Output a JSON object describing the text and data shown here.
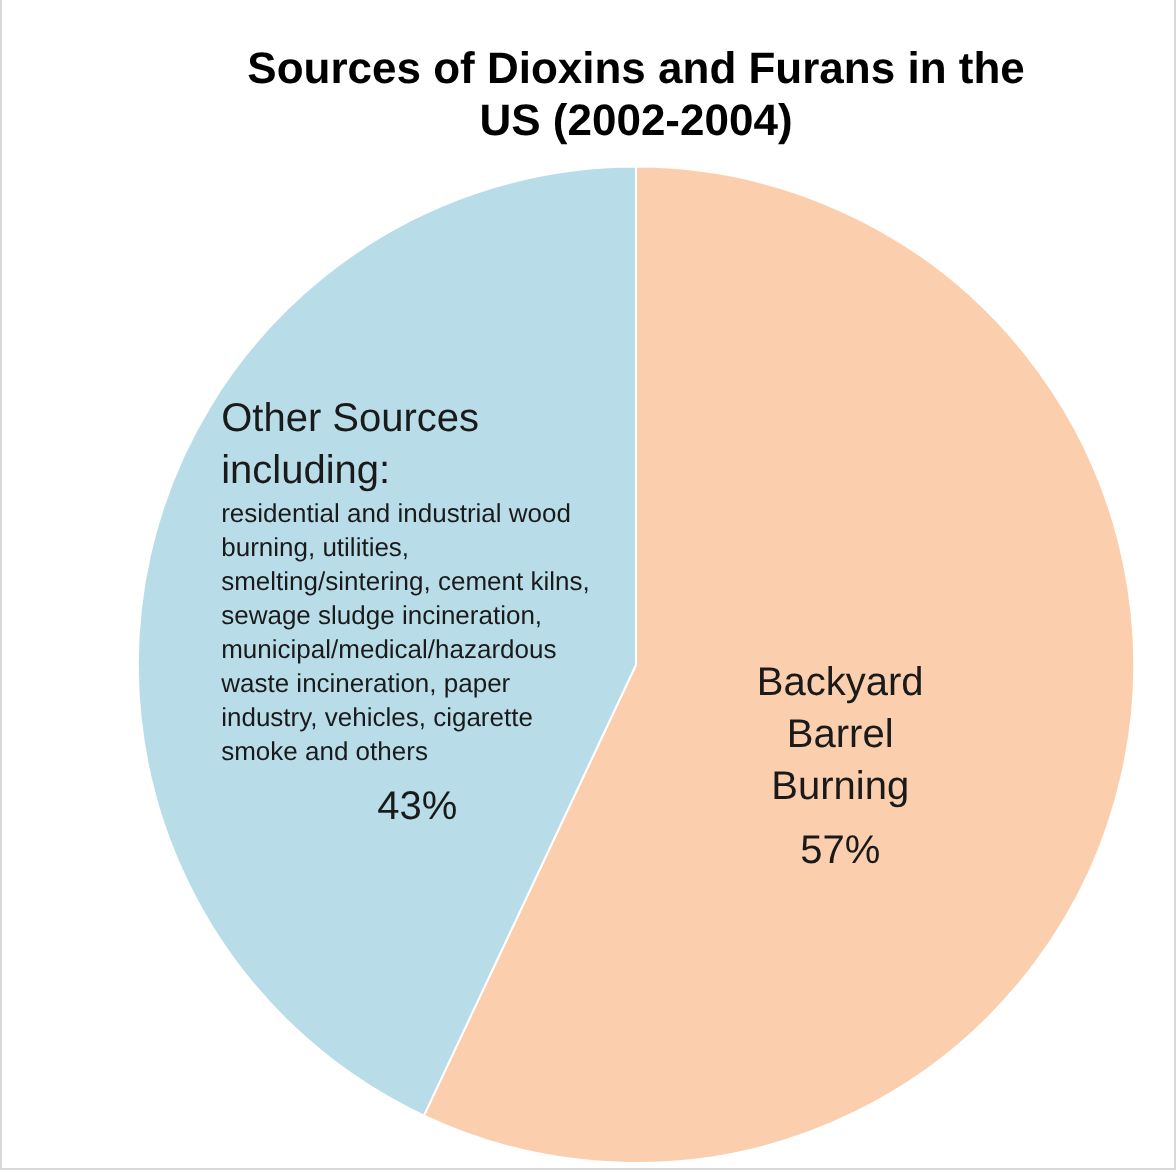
{
  "chart_data": {
    "type": "pie",
    "title": "Sources of Dioxins and Furans in the US (2002-2004)",
    "categories": [
      "Backyard Barrel Burning",
      "Other Sources"
    ],
    "values": [
      57,
      43
    ],
    "colors": [
      "#fbcfad",
      "#b8dde8"
    ],
    "value_labels": [
      "57%",
      "43%"
    ],
    "annotations": [
      "including:",
      "residential and industrial wood burning, utilities, smelting/sintering, cement kilns, sewage sludge incineration, municipal/medical/hazardous waste incineration, paper industry, vehicles, cigarette smoke and others"
    ],
    "legend": false
  }
}
